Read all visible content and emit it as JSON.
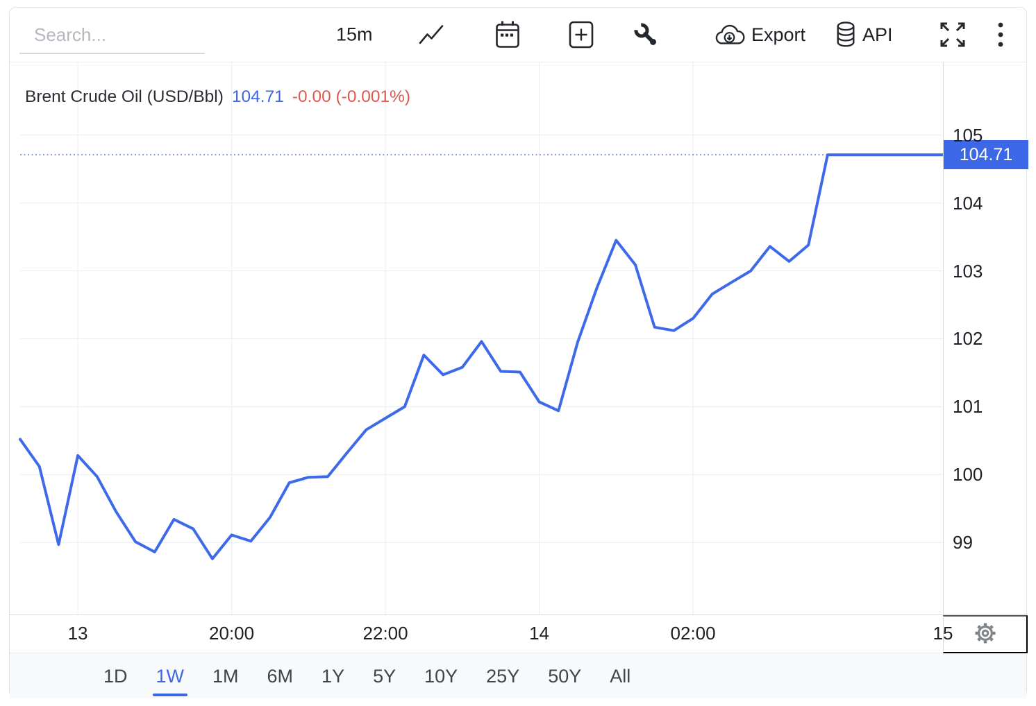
{
  "toolbar": {
    "search_placeholder": "Search...",
    "interval_label": "15m",
    "export_label": "Export",
    "api_label": "API"
  },
  "icons": [
    "search-underline",
    "line-chart-icon",
    "calendar-icon",
    "add-panel-icon",
    "wrench-icon",
    "cloud-download-icon",
    "database-icon",
    "fullscreen-icon",
    "kebab-menu-icon",
    "gear-icon"
  ],
  "header": {
    "title": "Brent Crude Oil (USD/Bbl)",
    "price": "104.71",
    "change": "-0.00 (-0.001%)"
  },
  "price_badge": "104.71",
  "range_tabs": {
    "items": [
      "1D",
      "1W",
      "1M",
      "6M",
      "1Y",
      "5Y",
      "10Y",
      "25Y",
      "50Y",
      "All"
    ],
    "active": "1W"
  },
  "colors": {
    "accent": "#3C68E8",
    "line": "#3E6AEA",
    "dotted": "#3B63DC",
    "title_price": "#3B66DE",
    "change_red": "#DD5A50",
    "grid": "#eaedf0",
    "axis_line": "#d9dcdf",
    "border": "#dfe3e7",
    "text_dark": "#1c1f24",
    "text_gray": "#3f444b",
    "tab_bg": "#f8f9fb",
    "placeholder": "#b4b8bf",
    "gear": "#7e8388"
  },
  "chart_data": {
    "type": "line",
    "title": "Brent Crude Oil (USD/Bbl)",
    "unit": "USD/Bbl",
    "interval": "15m",
    "range": "1W",
    "last_price": 104.71,
    "ylim": [
      97.94,
      106.07
    ],
    "y_ticks": [
      99,
      100,
      101,
      102,
      103,
      104,
      105
    ],
    "x_ticks": [
      {
        "i": 3,
        "label": "13"
      },
      {
        "i": 11,
        "label": "20:00"
      },
      {
        "i": 19,
        "label": "22:00"
      },
      {
        "i": 27,
        "label": "14"
      },
      {
        "i": 35,
        "label": "02:00"
      },
      {
        "i": 48,
        "label": "15"
      }
    ],
    "values": [
      100.52,
      100.12,
      98.97,
      100.28,
      99.97,
      99.45,
      99.01,
      98.86,
      99.34,
      99.2,
      98.76,
      99.11,
      99.02,
      99.37,
      99.88,
      99.96,
      99.97,
      100.32,
      100.66,
      100.83,
      101.0,
      101.76,
      101.47,
      101.58,
      101.96,
      101.52,
      101.51,
      101.07,
      100.94,
      101.95,
      102.75,
      103.45,
      103.09,
      102.17,
      102.12,
      102.3,
      102.66,
      102.83,
      103.0,
      103.36,
      103.14,
      103.38,
      104.71,
      104.71,
      104.71,
      104.71,
      104.71,
      104.71,
      104.71
    ],
    "legend": [],
    "grid": true
  }
}
